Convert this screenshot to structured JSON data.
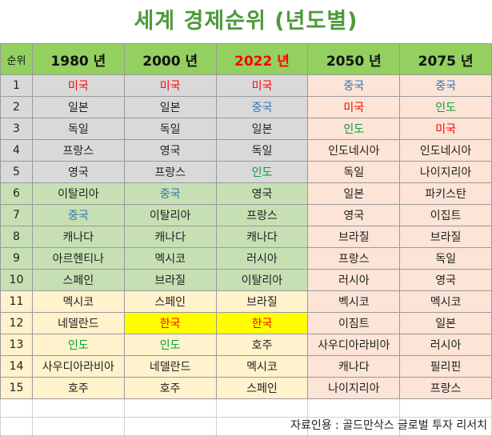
{
  "title": "세계 경제순위 (년도별)",
  "headers": {
    "rank": "순위",
    "years": [
      "1980 년",
      "2000 년",
      "2022 년",
      "2050 년",
      "2075 년"
    ],
    "year_colors": [
      "#111111",
      "#111111",
      "#ff0000",
      "#111111",
      "#111111"
    ]
  },
  "rows": [
    {
      "rank": "1",
      "cells": [
        {
          "t": "미국",
          "c": "red"
        },
        {
          "t": "미국",
          "c": "red"
        },
        {
          "t": "미국",
          "c": "red"
        },
        {
          "t": "중국",
          "c": "blue"
        },
        {
          "t": "중국",
          "c": "blue"
        }
      ]
    },
    {
      "rank": "2",
      "cells": [
        {
          "t": "일본"
        },
        {
          "t": "일본"
        },
        {
          "t": "중국",
          "c": "blue"
        },
        {
          "t": "미국",
          "c": "red"
        },
        {
          "t": "인도",
          "c": "green"
        }
      ]
    },
    {
      "rank": "3",
      "cells": [
        {
          "t": "독일"
        },
        {
          "t": "독일"
        },
        {
          "t": "일본"
        },
        {
          "t": "인도",
          "c": "green"
        },
        {
          "t": "미국",
          "c": "red"
        }
      ]
    },
    {
      "rank": "4",
      "cells": [
        {
          "t": "프랑스"
        },
        {
          "t": "영국"
        },
        {
          "t": "독일"
        },
        {
          "t": "인도네시아"
        },
        {
          "t": "인도네시아"
        }
      ]
    },
    {
      "rank": "5",
      "cells": [
        {
          "t": "영국"
        },
        {
          "t": "프랑스"
        },
        {
          "t": "인도",
          "c": "green"
        },
        {
          "t": "독일"
        },
        {
          "t": "나이지리아"
        }
      ]
    },
    {
      "rank": "6",
      "cells": [
        {
          "t": "이탈리아"
        },
        {
          "t": "중국",
          "c": "blue"
        },
        {
          "t": "영국"
        },
        {
          "t": "일본"
        },
        {
          "t": "파키스탄"
        }
      ]
    },
    {
      "rank": "7",
      "cells": [
        {
          "t": "중국",
          "c": "blue"
        },
        {
          "t": "이탈리아"
        },
        {
          "t": "프랑스"
        },
        {
          "t": "영국"
        },
        {
          "t": "이집트"
        }
      ]
    },
    {
      "rank": "8",
      "cells": [
        {
          "t": "캐나다"
        },
        {
          "t": "캐나다"
        },
        {
          "t": "캐나다"
        },
        {
          "t": "브라질"
        },
        {
          "t": "브라질"
        }
      ]
    },
    {
      "rank": "9",
      "cells": [
        {
          "t": "아르헨티나"
        },
        {
          "t": "멕시코"
        },
        {
          "t": "러시아"
        },
        {
          "t": "프랑스"
        },
        {
          "t": "독일"
        }
      ]
    },
    {
      "rank": "10",
      "cells": [
        {
          "t": "스페인"
        },
        {
          "t": "브라질"
        },
        {
          "t": "이탈리아"
        },
        {
          "t": "러시아"
        },
        {
          "t": "영국"
        }
      ]
    },
    {
      "rank": "11",
      "cells": [
        {
          "t": "멕시코"
        },
        {
          "t": "스페인"
        },
        {
          "t": "브라질"
        },
        {
          "t": "벡시코"
        },
        {
          "t": "멕시코"
        }
      ]
    },
    {
      "rank": "12",
      "cells": [
        {
          "t": "네델란드"
        },
        {
          "t": "한국",
          "c": "red",
          "hl": true
        },
        {
          "t": "한국",
          "c": "red",
          "hl": true
        },
        {
          "t": "이짐트"
        },
        {
          "t": "일본"
        }
      ]
    },
    {
      "rank": "13",
      "cells": [
        {
          "t": "인도",
          "c": "green"
        },
        {
          "t": "인도",
          "c": "green"
        },
        {
          "t": "호주"
        },
        {
          "t": "사우디아라비아"
        },
        {
          "t": "러시아"
        }
      ]
    },
    {
      "rank": "14",
      "cells": [
        {
          "t": "사우디아라비아"
        },
        {
          "t": "네델란드"
        },
        {
          "t": "멕시코"
        },
        {
          "t": "캐나다"
        },
        {
          "t": "필리핀"
        }
      ]
    },
    {
      "rank": "15",
      "cells": [
        {
          "t": "호주"
        },
        {
          "t": "호주"
        },
        {
          "t": "스페인"
        },
        {
          "t": "나이지리아"
        },
        {
          "t": "프랑스"
        }
      ]
    }
  ],
  "source": "자료인용 : 골드만삭스 글로벌 투자 리서치",
  "colors": {
    "title": "#4e9a3a",
    "header_bg": "#93d060",
    "group_gray": "#d9d9d9",
    "group_green": "#c6e0b4",
    "group_yellow": "#fff2cc",
    "future_bg": "#fce4d6",
    "highlight": "#ffff00",
    "red": "#ff0000",
    "blue": "#2e75b6",
    "green": "#00a03a"
  }
}
